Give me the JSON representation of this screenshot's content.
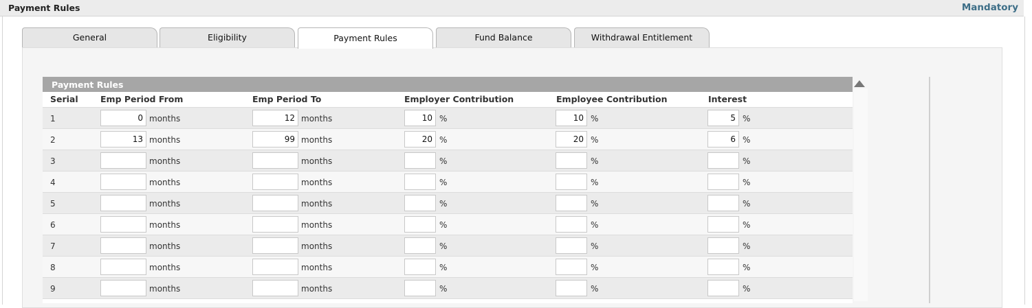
{
  "header": {
    "title": "Payment Rules",
    "mandatory": "Mandatory"
  },
  "tabs": [
    {
      "label": "General",
      "active": false
    },
    {
      "label": "Eligibility",
      "active": false
    },
    {
      "label": "Payment Rules",
      "active": true
    },
    {
      "label": "Fund Balance",
      "active": false
    },
    {
      "label": "Withdrawal Entitlement",
      "active": false
    }
  ],
  "grid": {
    "title": "Payment Rules",
    "columns": {
      "serial": "Serial",
      "from": "Emp Period From",
      "to": "Emp Period To",
      "employer": "Employer Contribution",
      "employee": "Employee Contribution",
      "interest": "Interest"
    },
    "units": {
      "months": "months",
      "percent": "%"
    },
    "rows": [
      {
        "serial": "1",
        "from": "0",
        "to": "12",
        "employer": "10",
        "employee": "10",
        "interest": "5"
      },
      {
        "serial": "2",
        "from": "13",
        "to": "99",
        "employer": "20",
        "employee": "20",
        "interest": "6"
      },
      {
        "serial": "3",
        "from": "",
        "to": "",
        "employer": "",
        "employee": "",
        "interest": ""
      },
      {
        "serial": "4",
        "from": "",
        "to": "",
        "employer": "",
        "employee": "",
        "interest": ""
      },
      {
        "serial": "5",
        "from": "",
        "to": "",
        "employer": "",
        "employee": "",
        "interest": ""
      },
      {
        "serial": "6",
        "from": "",
        "to": "",
        "employer": "",
        "employee": "",
        "interest": ""
      },
      {
        "serial": "7",
        "from": "",
        "to": "",
        "employer": "",
        "employee": "",
        "interest": ""
      },
      {
        "serial": "8",
        "from": "",
        "to": "",
        "employer": "",
        "employee": "",
        "interest": ""
      },
      {
        "serial": "9",
        "from": "",
        "to": "",
        "employer": "",
        "employee": "",
        "interest": ""
      }
    ]
  },
  "icons": {
    "scroll_up": "triangle-up-icon"
  },
  "colors": {
    "accent": "#3d6e87",
    "grid_title_bg": "#a6a6a6"
  }
}
